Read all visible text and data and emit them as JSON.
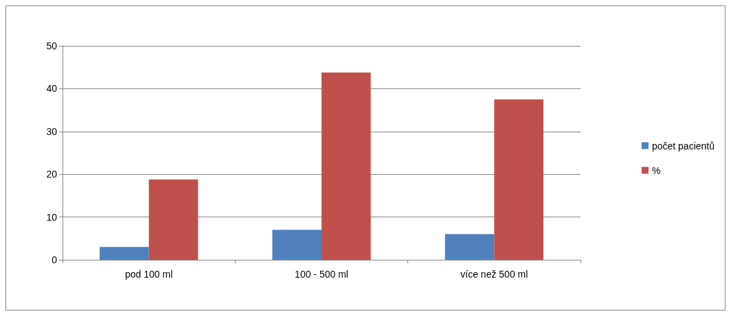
{
  "chart_data": {
    "type": "bar",
    "categories": [
      "pod 100 ml",
      "100 - 500 ml",
      "více než 500 ml"
    ],
    "series": [
      {
        "name": "počet pacientů",
        "color": "#4f81bd",
        "values": [
          3,
          7,
          6
        ]
      },
      {
        "name": "%",
        "color": "#c0504d",
        "values": [
          18.8,
          43.8,
          37.5
        ]
      }
    ],
    "ylim": [
      0,
      50
    ],
    "yticks": [
      0,
      10,
      20,
      30,
      40,
      50
    ],
    "grid": "y",
    "legend": "right"
  }
}
